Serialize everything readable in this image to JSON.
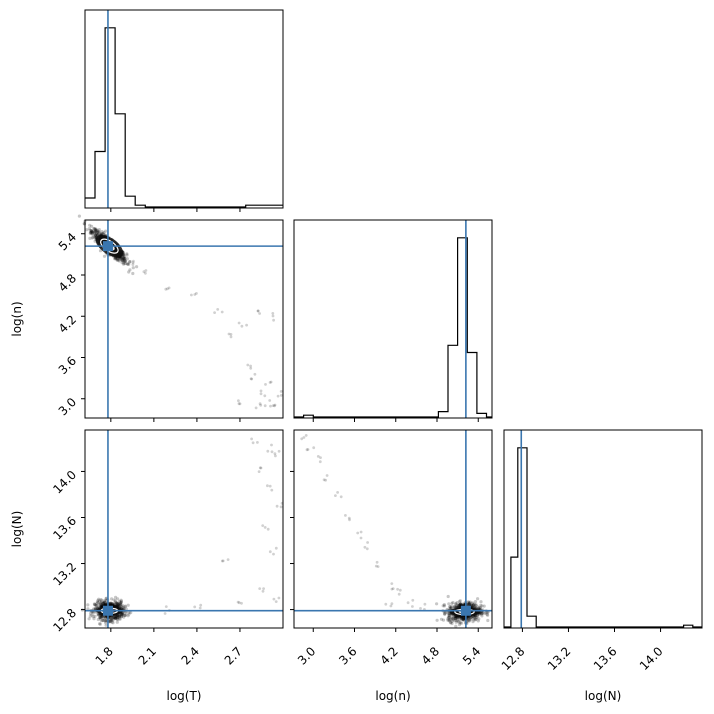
{
  "chart_data": {
    "type": "scatter",
    "subtype": "corner-plot",
    "colors": {
      "truth": "#3a76af",
      "hist": "#000000",
      "points": "#000000"
    },
    "parameters": [
      {
        "name": "log(T)",
        "truth": 1.78,
        "range": [
          1.62,
          3.0
        ],
        "ticks": [
          "1.8",
          "2.1",
          "2.4",
          "2.7"
        ],
        "tick_values": [
          1.8,
          2.1,
          2.4,
          2.7
        ]
      },
      {
        "name": "log(n)",
        "truth": 5.22,
        "range": [
          2.72,
          5.6
        ],
        "ticks": [
          "3.0",
          "3.6",
          "4.2",
          "4.8",
          "5.4"
        ],
        "tick_values": [
          3.0,
          3.6,
          4.2,
          4.8,
          5.4
        ]
      },
      {
        "name": "log(N)",
        "truth": 12.79,
        "range": [
          12.64,
          14.36
        ],
        "ticks": [
          "12.8",
          "13.2",
          "13.6",
          "14.0"
        ],
        "tick_values": [
          12.8,
          13.2,
          13.6,
          14.0
        ]
      }
    ],
    "histograms": [
      {
        "param": "log(T)",
        "bin_edges": [
          1.62,
          1.69,
          1.76,
          1.83,
          1.9,
          1.97,
          2.04,
          2.11,
          2.18,
          2.25,
          2.32,
          2.39,
          2.46,
          2.53,
          2.6,
          2.67,
          2.74,
          2.81,
          2.88,
          2.95,
          3.0
        ],
        "counts": [
          0.05,
          0.31,
          1.0,
          0.52,
          0.06,
          0.01,
          0,
          0,
          0,
          0,
          0,
          0,
          0,
          0,
          0,
          0,
          0.01,
          0.01,
          0.01,
          0.01
        ]
      },
      {
        "param": "log(n)",
        "bin_edges": [
          2.72,
          2.86,
          3.0,
          3.14,
          3.28,
          3.42,
          3.56,
          3.7,
          3.84,
          3.98,
          4.12,
          4.26,
          4.4,
          4.54,
          4.68,
          4.82,
          4.96,
          5.1,
          5.24,
          5.38,
          5.52,
          5.6
        ],
        "counts": [
          0,
          0.01,
          0,
          0,
          0,
          0,
          0,
          0,
          0,
          0,
          0,
          0,
          0,
          0,
          0,
          0.03,
          0.4,
          1.0,
          0.36,
          0.02,
          0
        ]
      },
      {
        "param": "log(N)",
        "bin_edges": [
          12.64,
          12.7,
          12.76,
          12.84,
          12.92,
          13.0,
          13.2,
          13.4,
          13.6,
          13.8,
          14.0,
          14.2,
          14.28,
          14.36
        ],
        "counts": [
          0.0,
          0.39,
          1.0,
          0.06,
          0.0,
          0,
          0,
          0,
          0,
          0,
          0,
          0.01,
          0
        ]
      }
    ],
    "scatter_panels": [
      {
        "x": "log(T)",
        "y": "log(n)",
        "core": {
          "x": 1.79,
          "y": 5.22,
          "sx": 0.06,
          "sy": 0.12,
          "corr": -0.9
        },
        "tail": [
          [
            1.95,
            4.98
          ],
          [
            2.05,
            4.82
          ],
          [
            2.2,
            4.6
          ],
          [
            2.38,
            4.5
          ],
          [
            2.55,
            4.3
          ],
          [
            2.65,
            3.95
          ],
          [
            2.75,
            3.5
          ],
          [
            2.85,
            3.1
          ],
          [
            2.9,
            2.95
          ],
          [
            2.95,
            2.9
          ],
          [
            2.85,
            4.25
          ],
          [
            2.93,
            4.2
          ],
          [
            2.72,
            4.1
          ],
          [
            2.8,
            3.3
          ],
          [
            2.9,
            3.2
          ],
          [
            2.98,
            3.05
          ],
          [
            2.82,
            2.88
          ],
          [
            2.7,
            2.93
          ]
        ]
      },
      {
        "x": "log(T)",
        "y": "log(N)",
        "core": {
          "x": 1.79,
          "y": 12.79,
          "sx": 0.05,
          "sy": 0.04,
          "corr": 0.0
        },
        "tail": [
          [
            2.8,
            14.25
          ],
          [
            2.9,
            14.2
          ],
          [
            2.95,
            14.15
          ],
          [
            2.85,
            14.0
          ],
          [
            2.9,
            13.85
          ],
          [
            2.97,
            13.7
          ],
          [
            2.88,
            13.5
          ],
          [
            2.93,
            13.3
          ],
          [
            2.6,
            13.25
          ],
          [
            2.85,
            12.95
          ],
          [
            2.95,
            12.9
          ],
          [
            2.7,
            12.85
          ],
          [
            2.4,
            12.82
          ],
          [
            2.2,
            12.8
          ]
        ]
      },
      {
        "x": "log(n)",
        "y": "log(N)",
        "core": {
          "x": 5.2,
          "y": 12.78,
          "sx": 0.12,
          "sy": 0.04,
          "corr": 0.1
        },
        "tail": [
          [
            2.85,
            14.28
          ],
          [
            2.95,
            14.2
          ],
          [
            3.05,
            14.1
          ],
          [
            3.2,
            13.95
          ],
          [
            3.35,
            13.8
          ],
          [
            3.5,
            13.6
          ],
          [
            3.65,
            13.45
          ],
          [
            3.8,
            13.35
          ],
          [
            3.95,
            13.2
          ],
          [
            4.15,
            13.0
          ],
          [
            4.25,
            12.95
          ],
          [
            4.4,
            12.85
          ],
          [
            4.1,
            12.85
          ],
          [
            4.6,
            12.82
          ]
        ]
      }
    ]
  }
}
